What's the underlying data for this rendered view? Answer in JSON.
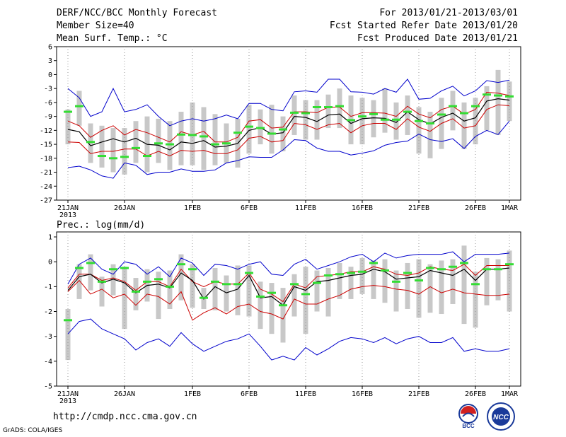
{
  "header": {
    "title": "DERF/NCC/BCC Monthly Forecast",
    "member_size": "Member Size=40",
    "variable": "Mean Surf. Temp.: °C",
    "period": "For 2013/01/21-2013/03/01",
    "started": "Fcst Started Refer Date 2013/01/20",
    "produced": "Fcst Produced Date 2013/01/21"
  },
  "footer": {
    "url": "http://cmdp.ncc.cma.gov.cn",
    "grads": "GrADS: COLA/IGES",
    "logo_bcc_text": "BCC",
    "logo_ncc_text": "NCC"
  },
  "colors": {
    "max_min": "#0000cc",
    "spread": "#cc0000",
    "mean": "#000000",
    "observed": "#33dd33",
    "box": "#c8c8c8",
    "dotted": "#999999"
  },
  "chart_data": [
    {
      "type": "line",
      "name": "temperature",
      "title": "Mean Surf. Temp.: °C",
      "x_tick_labels": [
        "21JAN",
        "26JAN",
        "1FEB",
        "6FEB",
        "11FEB",
        "16FEB",
        "21FEB",
        "26FEB",
        "1MAR"
      ],
      "x_tick_days": [
        0,
        5,
        11,
        16,
        21,
        26,
        31,
        36,
        39
      ],
      "x_sublabel": "2013",
      "ylim": [
        -27,
        6
      ],
      "y_ticks": [
        6,
        3,
        0,
        -3,
        -6,
        -9,
        -12,
        -15,
        -18,
        -21,
        -24,
        -27
      ],
      "series": [
        {
          "name": "max",
          "values": [
            -20,
            -19.7,
            -20.5,
            -21.8,
            -22.3,
            -19,
            -19.5,
            -21.5,
            -21,
            -21,
            -20.3,
            -20.8,
            -20.8,
            -20.5,
            -19,
            -18.5,
            -17.7,
            -17.8,
            -17.8,
            -16.2,
            -14,
            -14.2,
            -15.8,
            -16.5,
            -16.5,
            -17.3,
            -16.9,
            -16.4,
            -15.2,
            -14.6,
            -14.3,
            -12.8,
            -14,
            -14.4,
            -13.8,
            -15.9,
            -13.3,
            -12,
            -12.9,
            -10
          ]
        },
        {
          "name": "min",
          "values": [
            -3,
            -5,
            -9,
            -8,
            -3,
            -8,
            -7.5,
            -6.5,
            -9,
            -11,
            -10,
            -9.5,
            -10,
            -9.5,
            -8.7,
            -9.5,
            -6.2,
            -6.2,
            -7.5,
            -7.8,
            -3.7,
            -3.5,
            -3.8,
            -1,
            -1,
            -3.7,
            -3.8,
            -4.2,
            -3,
            -3.8,
            -1,
            -5.3,
            -5.1,
            -3.5,
            -2.5,
            -4.6,
            -3.5,
            -1.3,
            -1.7,
            -1.2
          ]
        },
        {
          "name": "spread_upper",
          "values": [
            -10,
            -11,
            -13.5,
            -12,
            -11,
            -13,
            -11.8,
            -12.5,
            -13.5,
            -14.5,
            -12.3,
            -13,
            -12.2,
            -14.5,
            -14.5,
            -13.5,
            -10,
            -9.7,
            -11.5,
            -11.3,
            -8,
            -8,
            -8.2,
            -7,
            -7,
            -9,
            -8.2,
            -8.2,
            -8.3,
            -9,
            -6.8,
            -8.5,
            -9.3,
            -7.5,
            -6.8,
            -8.5,
            -7.5,
            -3.8,
            -4,
            -4.5
          ]
        },
        {
          "name": "spread_lower",
          "values": [
            -14.5,
            -14.6,
            -17,
            -16.5,
            -16.5,
            -16,
            -16,
            -17.5,
            -16.5,
            -17.5,
            -16.3,
            -16.5,
            -16.3,
            -17,
            -17,
            -16.2,
            -13.7,
            -13.3,
            -14.5,
            -14.2,
            -10.5,
            -10.8,
            -11.8,
            -10.8,
            -10.5,
            -12.5,
            -11,
            -10.5,
            -10.5,
            -11.8,
            -9.5,
            -11.3,
            -12.2,
            -10.5,
            -9.5,
            -11.5,
            -11,
            -7.5,
            -6.5,
            -6.7
          ]
        },
        {
          "name": "ensemble_mean",
          "values": [
            -11.8,
            -12.3,
            -15.3,
            -14.5,
            -13.8,
            -14.5,
            -13.7,
            -15,
            -15.2,
            -16.2,
            -14.5,
            -14.8,
            -14.2,
            -15.6,
            -15.4,
            -14.8,
            -12,
            -11.4,
            -12.8,
            -12.5,
            -9,
            -9.2,
            -10.1,
            -8.7,
            -8.5,
            -10.5,
            -9.5,
            -9.3,
            -9.4,
            -10.3,
            -8,
            -9.7,
            -10.6,
            -9.2,
            -8.3,
            -10,
            -9.3,
            -5.7,
            -5.2,
            -5.5
          ]
        },
        {
          "name": "observed",
          "values": [
            -8,
            -6.8,
            -14.5,
            -17.5,
            -18,
            -17.7,
            -15.8,
            -17.5,
            -14.8,
            -15,
            -12.9,
            -13,
            -13.3,
            -15,
            -14.8,
            -12.5,
            -11.2,
            -11.5,
            -12.7,
            -11.8,
            -8.2,
            -8.3,
            -7,
            -7,
            -6.8,
            -9.8,
            -9,
            -8.5,
            -9.7,
            -9.7,
            -8,
            -10,
            -10.5,
            -8.6,
            -6.8,
            -8.3,
            -6.8,
            -4.3,
            -4.5,
            -4.7
          ]
        },
        {
          "name": "box_top",
          "values": [
            -7.5,
            -3.5,
            -10.5,
            -11,
            -11.5,
            -11.5,
            -10,
            -9,
            -9.5,
            -10,
            -8,
            -6,
            -7,
            -8.5,
            -10.5,
            -9.5,
            -6.5,
            -7.5,
            -6.5,
            -9,
            -4.5,
            -5.5,
            -5.5,
            -4.3,
            -3,
            -4.5,
            -5,
            -5.5,
            -3,
            -6,
            -4.5,
            -7,
            -8,
            -5,
            -3.5,
            -6,
            -5,
            -2.5,
            1,
            -1.5
          ]
        },
        {
          "name": "box_bottom",
          "values": [
            -15,
            -11,
            -19,
            -20,
            -21,
            -21.5,
            -19,
            -21,
            -19,
            -20.5,
            -19.5,
            -19.5,
            -20.5,
            -19.5,
            -19,
            -20,
            -17,
            -15,
            -17,
            -16.5,
            -13,
            -14,
            -14,
            -11.5,
            -11.5,
            -15,
            -15,
            -13.5,
            -12.5,
            -14,
            -13,
            -17,
            -18,
            -16,
            -12,
            -16,
            -15,
            -12,
            -13,
            -10
          ]
        }
      ]
    },
    {
      "type": "line",
      "name": "precipitation",
      "title": "Prec.: log(mm/d)",
      "x_tick_labels": [
        "21JAN",
        "26JAN",
        "1FEB",
        "6FEB",
        "11FEB",
        "16FEB",
        "21FEB",
        "26FEB",
        "1MAR"
      ],
      "x_tick_days": [
        0,
        5,
        11,
        16,
        21,
        26,
        31,
        36,
        39
      ],
      "x_sublabel": "2013",
      "ylim": [
        -5,
        1.2
      ],
      "y_ticks": [
        1,
        0,
        -1,
        -2,
        -3,
        -4,
        -5
      ],
      "series": [
        {
          "name": "max",
          "values": [
            -2.9,
            -2.4,
            -2.3,
            -2.7,
            -2.9,
            -3.1,
            -3.55,
            -3.25,
            -3.1,
            -3.4,
            -2.85,
            -3.3,
            -3.6,
            -3.4,
            -3.2,
            -3.1,
            -2.9,
            -3.4,
            -3.95,
            -3.8,
            -3.95,
            -3.45,
            -3.75,
            -3.5,
            -3.2,
            -3.05,
            -3.1,
            -3.25,
            -3.05,
            -3.3,
            -3.1,
            -3.0,
            -3.25,
            -3.25,
            -3.05,
            -3.6,
            -3.5,
            -3.6,
            -3.6,
            -3.5
          ]
        },
        {
          "name": "min",
          "values": [
            -0.9,
            -0.1,
            0.15,
            -0.3,
            -0.5,
            0,
            -0.1,
            -0.5,
            -0.2,
            -0.6,
            0.15,
            -0.05,
            -0.55,
            -0.1,
            -0.15,
            -0.3,
            -0.1,
            0,
            -0.5,
            -0.55,
            -0.1,
            0.1,
            -0.3,
            -0.15,
            0.0,
            0.2,
            0.3,
            0.0,
            0.35,
            0.15,
            0.25,
            0.3,
            0.3,
            0.3,
            0.4,
            0.0,
            0.3,
            0.3,
            0.3,
            0.35
          ]
        },
        {
          "name": "spread_upper",
          "values": [
            -1.05,
            -0.5,
            -0.5,
            -0.75,
            -0.65,
            -0.8,
            -1.15,
            -0.8,
            -0.8,
            -1.0,
            -0.3,
            -0.8,
            -1.0,
            -0.8,
            -0.9,
            -0.9,
            -0.45,
            -1.1,
            -1.3,
            -1.6,
            -0.9,
            -1.05,
            -0.6,
            -0.55,
            -0.5,
            -0.4,
            -0.4,
            -0.2,
            -0.3,
            -0.5,
            -0.55,
            -0.45,
            -0.2,
            -0.3,
            -0.35,
            -0.1,
            -0.55,
            -0.15,
            -0.15,
            -0.15
          ]
        },
        {
          "name": "spread_lower",
          "values": [
            -1.2,
            -0.75,
            -1.3,
            -1.1,
            -1.45,
            -1.3,
            -1.75,
            -1.3,
            -1.4,
            -1.7,
            -1.2,
            -2.35,
            -2.05,
            -1.85,
            -2.1,
            -1.8,
            -1.7,
            -2.0,
            -2.1,
            -2.3,
            -1.5,
            -1.7,
            -1.7,
            -1.5,
            -1.35,
            -1.1,
            -1.0,
            -0.95,
            -1.0,
            -1.1,
            -1.15,
            -1.3,
            -1.0,
            -1.25,
            -1.1,
            -1.25,
            -1.3,
            -1.35,
            -1.35,
            -1.3
          ]
        },
        {
          "name": "ensemble_mean",
          "values": [
            -1.15,
            -0.6,
            -0.5,
            -0.85,
            -0.7,
            -0.85,
            -1.25,
            -0.95,
            -0.9,
            -1.05,
            -0.45,
            -0.75,
            -1.5,
            -1.0,
            -1.25,
            -1.1,
            -0.55,
            -1.45,
            -1.4,
            -1.75,
            -1.0,
            -1.15,
            -0.8,
            -0.75,
            -0.65,
            -0.55,
            -0.5,
            -0.3,
            -0.4,
            -0.7,
            -0.65,
            -0.6,
            -0.35,
            -0.45,
            -0.55,
            -0.3,
            -0.75,
            -0.3,
            -0.3,
            -0.25
          ]
        },
        {
          "name": "observed",
          "values": [
            -2.35,
            -0.25,
            -0.05,
            -0.8,
            -0.3,
            -0.25,
            -1.2,
            -0.8,
            -0.7,
            -1.0,
            -0.1,
            -0.3,
            -1.45,
            -0.8,
            -0.9,
            -0.9,
            -0.45,
            -1.4,
            -1.25,
            -1.75,
            -0.9,
            -1.3,
            -0.85,
            -0.55,
            -0.5,
            -0.45,
            -0.4,
            -0.05,
            -0.35,
            -0.8,
            -0.45,
            -0.75,
            -0.25,
            -0.3,
            -0.2,
            -0.05,
            -0.9,
            -0.3,
            -0.3,
            -0.1
          ]
        },
        {
          "name": "box_top",
          "values": [
            -1.9,
            -0.1,
            0.3,
            -0.6,
            -0.1,
            -0.2,
            -0.65,
            -0.3,
            -0.4,
            -0.35,
            0.3,
            -0.1,
            -1.05,
            -0.25,
            -0.55,
            -0.15,
            -0.15,
            -0.8,
            -0.85,
            -1.05,
            -0.5,
            -0.2,
            -0.35,
            -0.25,
            -0.05,
            -0.2,
            0.15,
            0.05,
            0.1,
            -0.35,
            -0.05,
            0.1,
            -0.1,
            0.05,
            0.1,
            0.65,
            -0.4,
            0.15,
            0.1,
            0.45
          ]
        },
        {
          "name": "box_bottom",
          "values": [
            -3.95,
            -1.5,
            -1.15,
            -1.8,
            -1.35,
            -2.7,
            -1.95,
            -1.6,
            -2.3,
            -1.9,
            -1.55,
            -1.85,
            -1.9,
            -1.95,
            -2.0,
            -2.15,
            -2.2,
            -2.7,
            -2.9,
            -3.25,
            -2.2,
            -2.9,
            -2.0,
            -2.2,
            -1.5,
            -1.5,
            -1.3,
            -1.5,
            -1.65,
            -2.0,
            -1.9,
            -2.25,
            -2.05,
            -2.1,
            -1.7,
            -2.5,
            -2.65,
            -1.75,
            -1.55,
            -2.0
          ]
        }
      ]
    }
  ]
}
